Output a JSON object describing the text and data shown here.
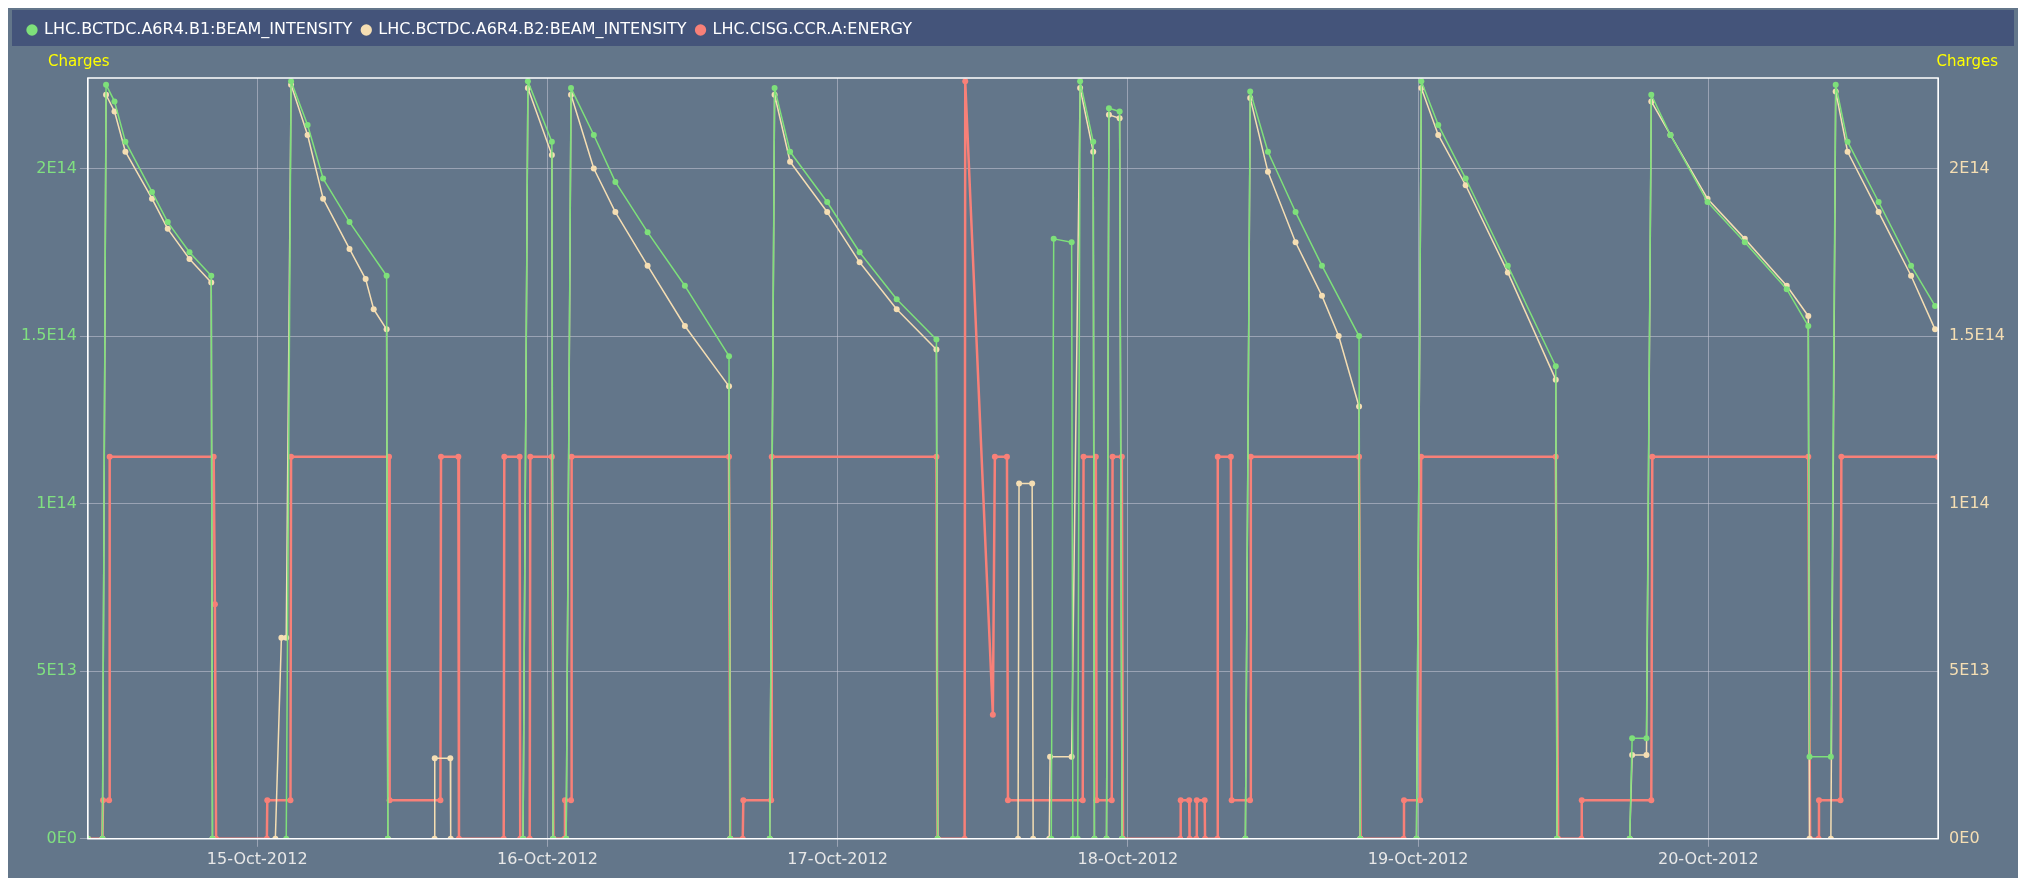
{
  "chart_data": {
    "type": "line",
    "ylabel": "Charges",
    "y2label": "Charges",
    "legend": "top",
    "grid": true,
    "marker": "circle",
    "xlim": [
      "2012-10-14T10:00",
      "2012-10-20T19:00"
    ],
    "xticks": [
      {
        "value": "2012-10-15",
        "label": "15-Oct-2012"
      },
      {
        "value": "2012-10-16",
        "label": "16-Oct-2012"
      },
      {
        "value": "2012-10-17",
        "label": "17-Oct-2012"
      },
      {
        "value": "2012-10-18",
        "label": "18-Oct-2012"
      },
      {
        "value": "2012-10-19",
        "label": "19-Oct-2012"
      },
      {
        "value": "2012-10-20",
        "label": "20-Oct-2012"
      }
    ],
    "ylim": [
      0,
      227000000000000.0
    ],
    "yticks": [
      {
        "value": 0,
        "label": "0E0"
      },
      {
        "value": 50000000000000.0,
        "label": "5E13"
      },
      {
        "value": 100000000000000.0,
        "label": "1E14"
      },
      {
        "value": 150000000000000.0,
        "label": "1.5E14"
      },
      {
        "value": 200000000000000.0,
        "label": "2E14"
      }
    ],
    "y2lim": [
      0,
      227000000000000.0
    ],
    "y2ticks": [
      {
        "value": 0,
        "label": "0E0"
      },
      {
        "value": 50000000000000.0,
        "label": "5E13"
      },
      {
        "value": 100000000000000.0,
        "label": "1E14"
      },
      {
        "value": 150000000000000.0,
        "label": "1.5E14"
      },
      {
        "value": 200000000000000.0,
        "label": "2E14"
      }
    ],
    "series": [
      {
        "name": "LHC.BCTDC.A6R4.B1:BEAM_INTENSITY",
        "color": "#7ee07a",
        "x": [
          "2012-10-14T10:00",
          "2012-10-14T11:12",
          "2012-10-14T11:30",
          "2012-10-14T12:12",
          "2012-10-14T13:06",
          "2012-10-14T15:18",
          "2012-10-14T16:36",
          "2012-10-14T18:24",
          "2012-10-14T20:12",
          "2012-10-14T20:18",
          "2012-10-15T02:24",
          "2012-10-15T02:48",
          "2012-10-15T04:10",
          "2012-10-15T05:27",
          "2012-10-15T07:38",
          "2012-10-15T10:42",
          "2012-10-15T10:48",
          "2012-10-15T21:59",
          "2012-10-15T22:23",
          "2012-10-16T00:22",
          "2012-10-16T00:28",
          "2012-10-16T01:33",
          "2012-10-16T01:57",
          "2012-10-16T03:50",
          "2012-10-16T05:37",
          "2012-10-16T08:17",
          "2012-10-16T11:22",
          "2012-10-16T15:01",
          "2012-10-16T15:07",
          "2012-10-16T18:23",
          "2012-10-16T18:47",
          "2012-10-16T20:04",
          "2012-10-16T23:08",
          "2012-10-17T01:49",
          "2012-10-17T04:53",
          "2012-10-17T08:10",
          "2012-10-17T08:16",
          "2012-10-17T17:40",
          "2012-10-17T17:52",
          "2012-10-17T19:21",
          "2012-10-17T19:27",
          "2012-10-17T19:51",
          "2012-10-17T20:03",
          "2012-10-17T21:08",
          "2012-10-17T21:14",
          "2012-10-17T22:14",
          "2012-10-17T22:26",
          "2012-10-17T23:19",
          "2012-10-17T23:31",
          "2012-10-18T09:43",
          "2012-10-18T10:07",
          "2012-10-18T11:35",
          "2012-10-18T13:52",
          "2012-10-18T16:03",
          "2012-10-18T19:07",
          "2012-10-18T19:13",
          "2012-10-18T23:52",
          "2012-10-19T00:16",
          "2012-10-19T01:40",
          "2012-10-19T03:56",
          "2012-10-19T07:25",
          "2012-10-19T11:23",
          "2012-10-19T11:29",
          "2012-10-19T17:30",
          "2012-10-19T17:42",
          "2012-10-19T18:53",
          "2012-10-19T19:17",
          "2012-10-19T20:52",
          "2012-10-19T23:56",
          "2012-10-20T03:01",
          "2012-10-20T06:29",
          "2012-10-20T08:16",
          "2012-10-20T08:22",
          "2012-10-20T10:08",
          "2012-10-20T10:32",
          "2012-10-20T11:31",
          "2012-10-20T14:05",
          "2012-10-20T16:46",
          "2012-10-20T18:45"
        ],
        "values": [
          0,
          0,
          225000000000000.0,
          220000000000000.0,
          208000000000000.0,
          193000000000000.0,
          184000000000000.0,
          175000000000000.0,
          168000000000000.0,
          0,
          0,
          226000000000000.0,
          213000000000000.0,
          197000000000000.0,
          184000000000000.0,
          168000000000000.0,
          0,
          0,
          226000000000000.0,
          208000000000000.0,
          0,
          0,
          224000000000000.0,
          210000000000000.0,
          196000000000000.0,
          181000000000000.0,
          165000000000000.0,
          144000000000000.0,
          0,
          0,
          224000000000000.0,
          205000000000000.0,
          190000000000000.0,
          175000000000000.0,
          161000000000000.0,
          149000000000000.0,
          0,
          0,
          179000000000000.0,
          178000000000000.0,
          0,
          0,
          226000000000000.0,
          208000000000000.0,
          0,
          0,
          218000000000000.0,
          217000000000000.0,
          0,
          0,
          223000000000000.0,
          205000000000000.0,
          187000000000000.0,
          171000000000000.0,
          150000000000000.0,
          0,
          0,
          226000000000000.0,
          213000000000000.0,
          197000000000000.0,
          171000000000000.0,
          141000000000000.0,
          0,
          0,
          30000000000000.0,
          30000000000000.0,
          222000000000000.0,
          210000000000000.0,
          190000000000000.0,
          178000000000000.0,
          164000000000000.0,
          153000000000000.0,
          24500000000000.0,
          24500000000000.0,
          225000000000000.0,
          208000000000000.0,
          190000000000000.0,
          171000000000000.0,
          159000000000000.0
        ]
      },
      {
        "name": "LHC.BCTDC.A6R4.B2:BEAM_INTENSITY",
        "color": "#f5deb3",
        "x": [
          "2012-10-14T10:00",
          "2012-10-14T11:12",
          "2012-10-14T11:30",
          "2012-10-14T12:12",
          "2012-10-14T13:06",
          "2012-10-14T15:18",
          "2012-10-14T16:36",
          "2012-10-14T18:24",
          "2012-10-14T20:12",
          "2012-10-14T20:18",
          "2012-10-15T01:30",
          "2012-10-15T02:00",
          "2012-10-15T02:24",
          "2012-10-15T02:48",
          "2012-10-15T04:10",
          "2012-10-15T05:27",
          "2012-10-15T07:38",
          "2012-10-15T08:58",
          "2012-10-15T09:38",
          "2012-10-15T10:42",
          "2012-10-15T10:48",
          "2012-10-15T14:40",
          "2012-10-15T14:41",
          "2012-10-15T15:58",
          "2012-10-15T16:00",
          "2012-10-15T21:59",
          "2012-10-15T22:23",
          "2012-10-16T00:22",
          "2012-10-16T00:28",
          "2012-10-16T01:33",
          "2012-10-16T01:57",
          "2012-10-16T03:50",
          "2012-10-16T05:37",
          "2012-10-16T08:17",
          "2012-10-16T11:22",
          "2012-10-16T15:01",
          "2012-10-16T15:07",
          "2012-10-16T18:23",
          "2012-10-16T18:47",
          "2012-10-16T20:04",
          "2012-10-16T23:08",
          "2012-10-17T01:49",
          "2012-10-17T04:53",
          "2012-10-17T08:10",
          "2012-10-17T08:16",
          "2012-10-17T14:55",
          "2012-10-17T15:00",
          "2012-10-17T16:05",
          "2012-10-17T16:10",
          "2012-10-17T17:30",
          "2012-10-17T17:34",
          "2012-10-17T19:21",
          "2012-10-17T20:03",
          "2012-10-17T21:08",
          "2012-10-17T21:14",
          "2012-10-17T22:14",
          "2012-10-17T22:26",
          "2012-10-17T23:19",
          "2012-10-17T23:31",
          "2012-10-18T09:43",
          "2012-10-18T10:07",
          "2012-10-18T11:35",
          "2012-10-18T13:52",
          "2012-10-18T16:03",
          "2012-10-18T17:26",
          "2012-10-18T19:07",
          "2012-10-18T19:13",
          "2012-10-18T23:52",
          "2012-10-19T00:16",
          "2012-10-19T01:40",
          "2012-10-19T03:56",
          "2012-10-19T07:25",
          "2012-10-19T11:23",
          "2012-10-19T11:29",
          "2012-10-19T17:30",
          "2012-10-19T17:42",
          "2012-10-19T18:53",
          "2012-10-19T19:17",
          "2012-10-19T20:52",
          "2012-10-19T23:56",
          "2012-10-20T03:01",
          "2012-10-20T06:29",
          "2012-10-20T08:16",
          "2012-10-20T08:22",
          "2012-10-20T10:08",
          "2012-10-20T10:32",
          "2012-10-20T11:31",
          "2012-10-20T14:05",
          "2012-10-20T16:46",
          "2012-10-20T18:45"
        ],
        "values": [
          0,
          0,
          222000000000000.0,
          217000000000000.0,
          205000000000000.0,
          191000000000000.0,
          182000000000000.0,
          173000000000000.0,
          166000000000000.0,
          0,
          0,
          60000000000000.0,
          60000000000000.0,
          225000000000000.0,
          210000000000000.0,
          191000000000000.0,
          176000000000000.0,
          167000000000000.0,
          158000000000000.0,
          152000000000000.0,
          0,
          0,
          24000000000000.0,
          24000000000000.0,
          0,
          0,
          224000000000000.0,
          204000000000000.0,
          0,
          0,
          222000000000000.0,
          200000000000000.0,
          187000000000000.0,
          171000000000000.0,
          153000000000000.0,
          135000000000000.0,
          0,
          0,
          222000000000000.0,
          202000000000000.0,
          187000000000000.0,
          172000000000000.0,
          158000000000000.0,
          146000000000000.0,
          0,
          0,
          106000000000000.0,
          106000000000000.0,
          0,
          0,
          24500000000000.0,
          24500000000000.0,
          224000000000000.0,
          205000000000000.0,
          0,
          0,
          216000000000000.0,
          215000000000000.0,
          0,
          0,
          221000000000000.0,
          199000000000000.0,
          178000000000000.0,
          162000000000000.0,
          150000000000000.0,
          129000000000000.0,
          0,
          0,
          224000000000000.0,
          210000000000000.0,
          195000000000000.0,
          169000000000000.0,
          137000000000000.0,
          0,
          0,
          25000000000000.0,
          25000000000000.0,
          220000000000000.0,
          210000000000000.0,
          191000000000000.0,
          179000000000000.0,
          165000000000000.0,
          156000000000000.0,
          0,
          0,
          223000000000000.0,
          205000000000000.0,
          187000000000000.0,
          168000000000000.0,
          152000000000000.0
        ]
      },
      {
        "name": "LHC.CISG.CCR.A:ENERGY",
        "color": "#f88078",
        "x": [
          "2012-10-14T10:00",
          "2012-10-14T11:12",
          "2012-10-14T11:15",
          "2012-10-14T11:45",
          "2012-10-14T11:48",
          "2012-10-14T20:24",
          "2012-10-14T20:30",
          "2012-10-14T20:36",
          "2012-10-15T00:48",
          "2012-10-15T00:50",
          "2012-10-15T02:45",
          "2012-10-15T02:48",
          "2012-10-15T10:54",
          "2012-10-15T10:57",
          "2012-10-15T15:09",
          "2012-10-15T15:12",
          "2012-10-15T16:38",
          "2012-10-15T16:41",
          "2012-10-15T20:23",
          "2012-10-15T20:26",
          "2012-10-15T21:42",
          "2012-10-15T21:45",
          "2012-10-15T22:32",
          "2012-10-15T22:35",
          "2012-10-16T00:22",
          "2012-10-16T00:30",
          "2012-10-16T01:24",
          "2012-10-16T01:27",
          "2012-10-16T01:57",
          "2012-10-16T02:00",
          "2012-10-16T15:01",
          "2012-10-16T15:07",
          "2012-10-16T16:09",
          "2012-10-16T16:12",
          "2012-10-16T18:30",
          "2012-10-16T18:33",
          "2012-10-17T08:10",
          "2012-10-17T08:16",
          "2012-10-17T10:30",
          "2012-10-17T10:33",
          "2012-10-17T12:50",
          "2012-10-17T13:00",
          "2012-10-17T14:00",
          "2012-10-17T14:05",
          "2012-10-17T20:16",
          "2012-10-17T20:20",
          "2012-10-17T21:21",
          "2012-10-17T21:25",
          "2012-10-17T22:40",
          "2012-10-17T22:44",
          "2012-10-17T23:30",
          "2012-10-17T23:36",
          "2012-10-18T04:20",
          "2012-10-18T04:22",
          "2012-10-18T05:04",
          "2012-10-18T05:06",
          "2012-10-18T05:40",
          "2012-10-18T05:42",
          "2012-10-18T06:21",
          "2012-10-18T06:23",
          "2012-10-18T07:24",
          "2012-10-18T07:26",
          "2012-10-18T08:31",
          "2012-10-18T08:35",
          "2012-10-18T10:06",
          "2012-10-18T10:10",
          "2012-10-18T19:07",
          "2012-10-18T19:15",
          "2012-10-18T22:48",
          "2012-10-18T22:50",
          "2012-10-19T00:10",
          "2012-10-19T00:15",
          "2012-10-19T11:23",
          "2012-10-19T11:35",
          "2012-10-19T13:30",
          "2012-10-19T13:32",
          "2012-10-19T19:17",
          "2012-10-19T19:22",
          "2012-10-20T08:16",
          "2012-10-20T08:25",
          "2012-10-20T09:07",
          "2012-10-20T09:09",
          "2012-10-20T10:56",
          "2012-10-20T11:00",
          "2012-10-20T19:00"
        ],
        "values": [
          0,
          0,
          11500000000000.0,
          11500000000000.0,
          114000000000000.0,
          114000000000000.0,
          70000000000000.0,
          0,
          0,
          11500000000000.0,
          11500000000000.0,
          114000000000000.0,
          114000000000000.0,
          11500000000000.0,
          11500000000000.0,
          114000000000000.0,
          114000000000000.0,
          0,
          0,
          114000000000000.0,
          114000000000000.0,
          0,
          0,
          114000000000000.0,
          114000000000000.0,
          0,
          0,
          11500000000000.0,
          11500000000000.0,
          114000000000000.0,
          114000000000000.0,
          0,
          0,
          11500000000000.0,
          11500000000000.0,
          114000000000000.0,
          114000000000000.0,
          0,
          0,
          226000000000000.0,
          37000000000000.0,
          114000000000000.0,
          114000000000000.0,
          11500000000000.0,
          11500000000000.0,
          114000000000000.0,
          114000000000000.0,
          11500000000000.0,
          11500000000000.0,
          114000000000000.0,
          114000000000000.0,
          0,
          0,
          11500000000000.0,
          11500000000000.0,
          0,
          0,
          11500000000000.0,
          11500000000000.0,
          0,
          0,
          114000000000000.0,
          114000000000000.0,
          11500000000000.0,
          11500000000000.0,
          114000000000000.0,
          114000000000000.0,
          0,
          0,
          11500000000000.0,
          11500000000000.0,
          114000000000000.0,
          114000000000000.0,
          0,
          0,
          11500000000000.0,
          11500000000000.0,
          114000000000000.0,
          114000000000000.0,
          0,
          0,
          11500000000000.0,
          11500000000000.0,
          114000000000000.0,
          114000000000000.0
        ]
      }
    ]
  }
}
